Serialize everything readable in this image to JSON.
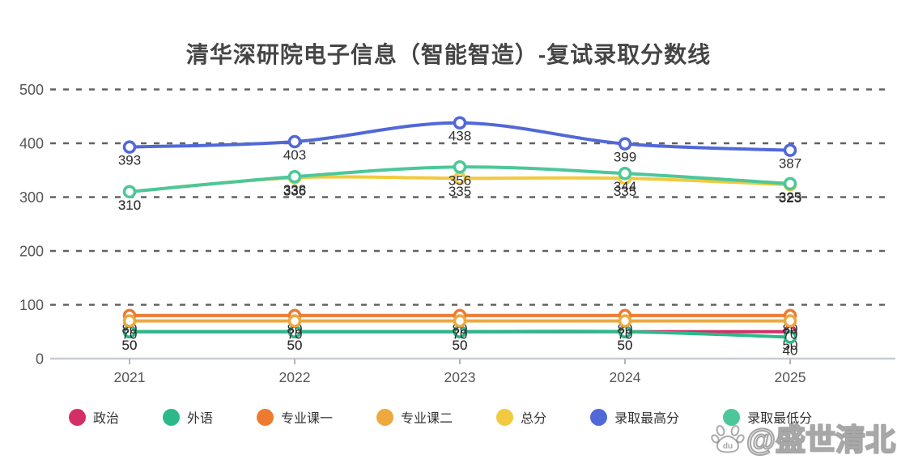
{
  "title": "清华深研院电子信息（智能智造）-复试录取分数线",
  "watermark": {
    "icon": "baidu-paw-icon",
    "text": "@盛世清北"
  },
  "chart_data": {
    "type": "line",
    "smooth": true,
    "point_labels": true,
    "grid": "horizontal dashed",
    "legend_position": "bottom",
    "categories": [
      "2021",
      "2022",
      "2023",
      "2024",
      "2025"
    ],
    "ylim": [
      0,
      500
    ],
    "yticks": [
      0,
      100,
      200,
      300,
      400,
      500
    ],
    "xlabel": "",
    "ylabel": "",
    "series": [
      {
        "name": "政治",
        "color": "#d23065",
        "values": [
          50,
          50,
          50,
          50,
          50
        ]
      },
      {
        "name": "外语",
        "color": "#2cb98a",
        "values": [
          50,
          50,
          50,
          50,
          40
        ]
      },
      {
        "name": "专业课一",
        "color": "#ec7b30",
        "values": [
          80,
          80,
          80,
          80,
          80
        ]
      },
      {
        "name": "专业课二",
        "color": "#eda83e",
        "values": [
          70,
          70,
          70,
          70,
          70
        ]
      },
      {
        "name": "总分",
        "color": "#f1ca3f",
        "values": [
          310,
          336,
          335,
          335,
          323
        ]
      },
      {
        "name": "录取最高分",
        "color": "#5168d8",
        "values": [
          393,
          403,
          438,
          399,
          387
        ]
      },
      {
        "name": "录取最低分",
        "color": "#4cc79a",
        "values": [
          310,
          338,
          356,
          344,
          325
        ]
      }
    ]
  }
}
